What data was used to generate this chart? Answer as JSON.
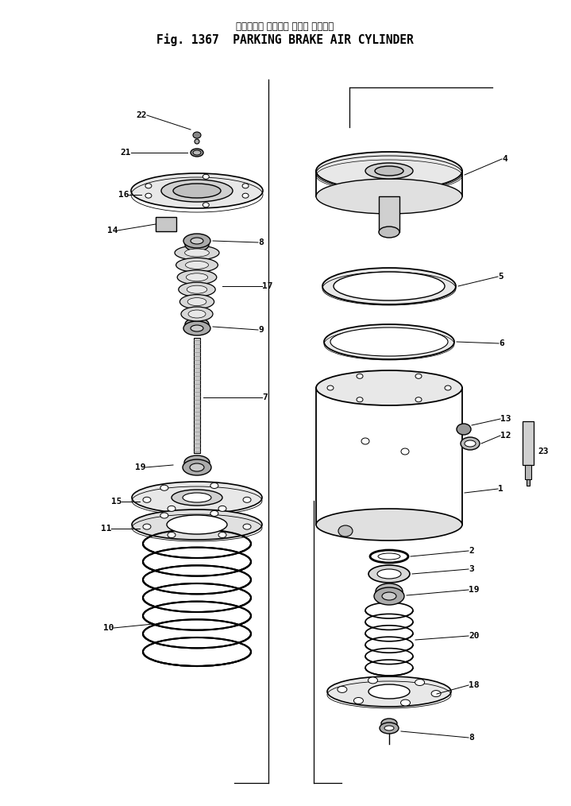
{
  "title_jp": "パーキング ブレーキ エアー シリンダ",
  "title_en": "Fig. 1367  PARKING BRAKE AIR CYLINDER",
  "bg_color": "#ffffff",
  "line_color": "#000000",
  "title_fontsize": 10.5,
  "title_jp_fontsize": 8.5,
  "figsize": [
    7.19,
    10.14
  ],
  "dpi": 100
}
